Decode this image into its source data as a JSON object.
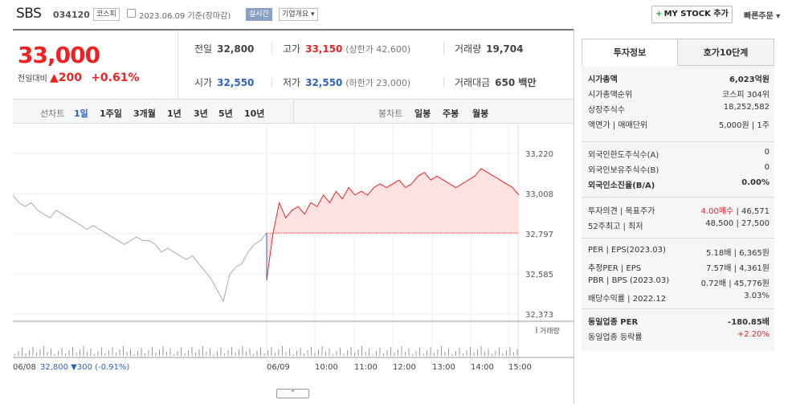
{
  "header": {
    "name": "SBS",
    "code": "034120",
    "market_tag": "코스피",
    "date": "2023.06.09 기준(장마감)",
    "realtime_tag": "실시간",
    "company_tag": "기업개요",
    "mystock_label": "MY STOCK 추가",
    "fast_order": "빠른주문"
  },
  "price": {
    "current": "33,000",
    "change_label": "전일대비",
    "change": "200",
    "change_pct": "+0.61%"
  },
  "quote": {
    "prev_label": "전일",
    "prev": "32,800",
    "high_label": "고가",
    "high": "33,150",
    "upper_limit": "(상한가 42,600)",
    "volume_label": "거래량",
    "volume": "19,704",
    "open_label": "시가",
    "open": "32,550",
    "low_label": "저가",
    "low": "32,550",
    "lower_limit": "(하한가 23,000)",
    "amount_label": "거래대금",
    "amount": "650 백만"
  },
  "period_bar": {
    "line_label": "선차트",
    "line_periods": [
      "1일",
      "1주일",
      "3개월",
      "1년",
      "3년",
      "5년",
      "10년"
    ],
    "candle_label": "봉차트",
    "candle_periods": [
      "일봉",
      "주봉",
      "월봉"
    ]
  },
  "chart_data": {
    "type": "line",
    "ylim": [
      32373,
      33220
    ],
    "yticks": [
      "33,220",
      "33,008",
      "32,797",
      "32,585",
      "32,373"
    ],
    "xticks": [
      "06/08",
      "06/09",
      "10:00",
      "11:00",
      "12:00",
      "13:00",
      "14:00",
      "15:00"
    ],
    "reference_price": 32800,
    "volume_legend": "거래량",
    "prev_day_info": {
      "date": "06/08",
      "close": "32,800",
      "change": "▼300",
      "pct": "(-0.91%)"
    },
    "series": [
      {
        "values": [
          33000,
          32960,
          32940,
          32960,
          32920,
          32900,
          32880,
          32920,
          32900,
          32880,
          32860,
          32840,
          32820,
          32840,
          32820,
          32800,
          32780,
          32760,
          32740,
          32760,
          32780,
          32760,
          32760,
          32740,
          32700,
          32720,
          32700,
          32680,
          32660,
          32680,
          32640,
          32600,
          32560,
          32500,
          32440,
          32580,
          32620,
          32640,
          32700,
          32740,
          32760,
          32800
        ]
      },
      {
        "values": [
          32550,
          32800,
          32960,
          32880,
          32920,
          32940,
          32900,
          32960,
          32940,
          33000,
          32960,
          33020,
          32980,
          33040,
          33000,
          33020,
          33000,
          33040,
          33060,
          33040,
          33060,
          33080,
          33040,
          33060,
          33100,
          33120,
          33080,
          33100,
          33080,
          33060,
          33040,
          33060,
          33080,
          33100,
          33140,
          33120,
          33100,
          33080,
          33060,
          33040,
          33000
        ]
      }
    ]
  },
  "right_panel": {
    "tab_invest": "투자정보",
    "tab_hoga": "호가10단계",
    "rows1": [
      {
        "label": "시가총액",
        "value": "6,023억원",
        "bold": true
      },
      {
        "label": "시가총액순위",
        "value": "코스피 304위"
      },
      {
        "label": "상장주식수",
        "value": "18,252,582"
      },
      {
        "label": "액면가 | 매매단위",
        "value": "5,000원 | 1주"
      }
    ],
    "rows2": [
      {
        "label": "외국인한도주식수(A)",
        "value": "0"
      },
      {
        "label": "외국인보유주식수(B)",
        "value": "0"
      },
      {
        "label": "외국인소진율(B/A)",
        "value": "0.00%",
        "bold": true
      }
    ],
    "rows3": [
      {
        "label": "투자의견 | 목표주가",
        "value": "4.00매수 | 46,571"
      },
      {
        "label": "52주최고 | 최저",
        "value": "48,500 | 27,500"
      }
    ],
    "rows4": [
      {
        "label": "PER | EPS(2023.03)",
        "value": "5.18배 | 6,365원"
      },
      {
        "label": "추정PER | EPS",
        "value": "7.57배 | 4,361원"
      },
      {
        "label": "PBR | BPS (2023.03)",
        "value": "0.72배 | 45,776원"
      },
      {
        "label": "배당수익률 | 2022.12",
        "value": "3.03%"
      }
    ],
    "rows5": [
      {
        "label": "동일업종 PER",
        "value": "-180.85배",
        "bold": true
      },
      {
        "label": "동일업종 등락률",
        "value": "+2.20%"
      }
    ],
    "colors": {
      "up": "#ee2222",
      "down": "#2b62c9"
    }
  }
}
